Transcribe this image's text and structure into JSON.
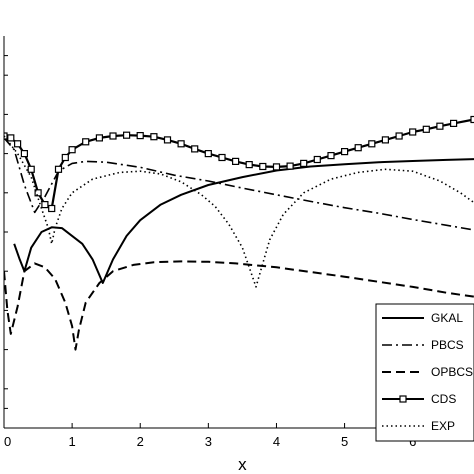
{
  "chart_data": {
    "type": "line",
    "title": "",
    "xlabel": "x",
    "ylabel": "",
    "xlim": [
      0,
      6.9
    ],
    "ylim": [
      0,
      1
    ],
    "grid": false,
    "x_ticks": [
      "0",
      "1",
      "2",
      "3",
      "4",
      "5",
      "6"
    ],
    "legend": {
      "placement": "bottom-right"
    },
    "series": [
      {
        "name": "GKAL",
        "style": "solid",
        "marker": "none",
        "x": [
          0.15,
          0.23,
          0.3,
          0.4,
          0.55,
          0.7,
          0.85,
          1.0,
          1.15,
          1.3,
          1.45,
          1.6,
          1.8,
          2.0,
          2.3,
          2.6,
          3.0,
          3.5,
          4.0,
          4.5,
          5.0,
          5.5,
          6.0,
          6.5,
          6.9
        ],
        "y": [
          0.47,
          0.43,
          0.4,
          0.46,
          0.5,
          0.512,
          0.51,
          0.49,
          0.47,
          0.43,
          0.37,
          0.43,
          0.49,
          0.53,
          0.57,
          0.595,
          0.62,
          0.64,
          0.657,
          0.667,
          0.673,
          0.678,
          0.681,
          0.684,
          0.686
        ]
      },
      {
        "name": "PBCS",
        "style": "dashdot",
        "marker": "none",
        "x": [
          0.0,
          0.15,
          0.3,
          0.45,
          0.6,
          0.8,
          1.0,
          1.2,
          1.5,
          2.0,
          2.5,
          3.0,
          3.5,
          4.0,
          4.5,
          5.0,
          5.5,
          6.0,
          6.5,
          6.9
        ],
        "y": [
          0.74,
          0.71,
          0.62,
          0.55,
          0.59,
          0.655,
          0.675,
          0.68,
          0.678,
          0.665,
          0.645,
          0.63,
          0.612,
          0.595,
          0.578,
          0.562,
          0.548,
          0.532,
          0.517,
          0.505
        ]
      },
      {
        "name": "OPBCS",
        "style": "dashed",
        "marker": "none",
        "x": [
          0.0,
          0.05,
          0.1,
          0.2,
          0.3,
          0.45,
          0.6,
          0.75,
          0.9,
          1.0,
          1.05,
          1.1,
          1.2,
          1.4,
          1.6,
          1.9,
          2.2,
          2.6,
          3.0,
          3.4,
          4.0,
          4.5,
          5.0,
          5.5,
          6.0,
          6.5,
          6.9
        ],
        "y": [
          0.4,
          0.3,
          0.24,
          0.31,
          0.4,
          0.42,
          0.41,
          0.38,
          0.32,
          0.26,
          0.2,
          0.25,
          0.32,
          0.37,
          0.4,
          0.416,
          0.423,
          0.425,
          0.424,
          0.42,
          0.41,
          0.398,
          0.386,
          0.373,
          0.36,
          0.345,
          0.335
        ]
      },
      {
        "name": "CDS",
        "style": "solid",
        "marker": "square",
        "x": [
          0.0,
          0.1,
          0.2,
          0.3,
          0.4,
          0.5,
          0.6,
          0.7,
          0.8,
          0.9,
          1.0,
          1.2,
          1.4,
          1.6,
          1.8,
          2.0,
          2.2,
          2.4,
          2.6,
          2.8,
          3.0,
          3.2,
          3.4,
          3.6,
          3.8,
          4.0,
          4.2,
          4.4,
          4.6,
          4.8,
          5.0,
          5.2,
          5.4,
          5.6,
          5.8,
          6.0,
          6.2,
          6.4,
          6.6,
          6.9
        ],
        "y": [
          0.745,
          0.74,
          0.725,
          0.7,
          0.66,
          0.6,
          0.57,
          0.56,
          0.66,
          0.69,
          0.71,
          0.73,
          0.74,
          0.745,
          0.747,
          0.746,
          0.743,
          0.735,
          0.725,
          0.712,
          0.7,
          0.69,
          0.68,
          0.672,
          0.667,
          0.666,
          0.668,
          0.675,
          0.685,
          0.695,
          0.705,
          0.715,
          0.725,
          0.735,
          0.745,
          0.755,
          0.762,
          0.77,
          0.777,
          0.787
        ]
      },
      {
        "name": "EXP",
        "style": "dotted",
        "marker": "none",
        "x": [
          0.0,
          0.2,
          0.4,
          0.55,
          0.65,
          0.7,
          0.75,
          0.85,
          1.0,
          1.3,
          1.7,
          2.0,
          2.3,
          2.6,
          2.9,
          3.1,
          3.3,
          3.5,
          3.6,
          3.7,
          3.8,
          3.9,
          4.1,
          4.4,
          4.8,
          5.2,
          5.6,
          6.0,
          6.4,
          6.7,
          6.9
        ],
        "y": [
          0.745,
          0.7,
          0.64,
          0.56,
          0.51,
          0.47,
          0.51,
          0.56,
          0.6,
          0.635,
          0.652,
          0.655,
          0.648,
          0.628,
          0.595,
          0.565,
          0.52,
          0.46,
          0.41,
          0.36,
          0.42,
          0.48,
          0.545,
          0.6,
          0.635,
          0.652,
          0.66,
          0.655,
          0.63,
          0.6,
          0.575
        ]
      }
    ]
  }
}
